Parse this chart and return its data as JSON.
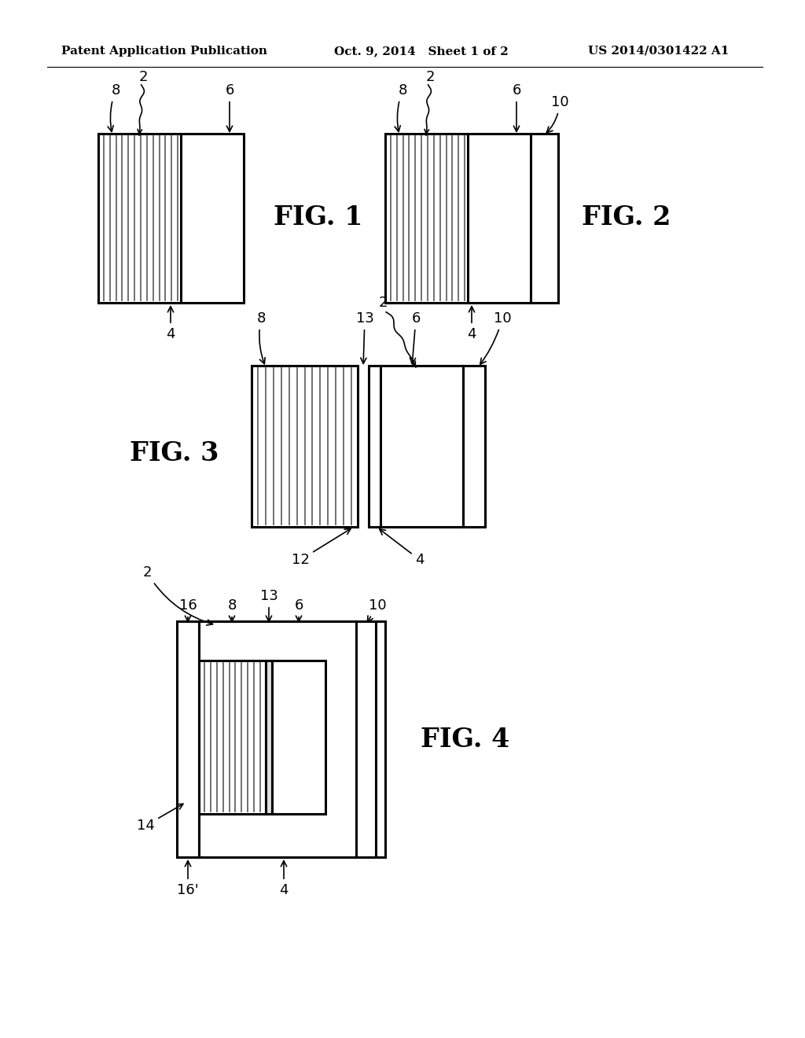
{
  "background_color": "#ffffff",
  "header_left": "Patent Application Publication",
  "header_mid": "Oct. 9, 2014   Sheet 1 of 2",
  "header_right": "US 2014/0301422 A1",
  "fig1_label": "FIG. 1",
  "fig2_label": "FIG. 2",
  "fig3_label": "FIG. 3",
  "fig4_label": "FIG. 4",
  "line_color": "#000000",
  "stripe_color": "#666666",
  "label_fs": 13,
  "figlabel_fs": 24
}
